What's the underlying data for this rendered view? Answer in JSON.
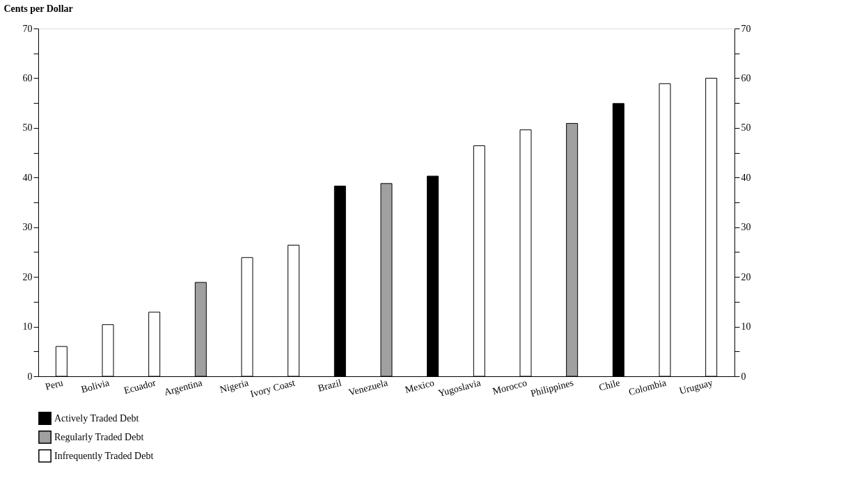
{
  "chart_data": {
    "type": "bar",
    "ylabel": "Cents per Dollar",
    "categories": [
      "Peru",
      "Bolivia",
      "Ecuador",
      "Argentina",
      "Nigeria",
      "Ivory Coast",
      "Brazil",
      "Venezuela",
      "Mexico",
      "Yugoslavia",
      "Morocco",
      "Philippines",
      "Chile",
      "Colombia",
      "Uruguay"
    ],
    "series": [
      {
        "name": "Actively Traded Debt",
        "color": "#000000",
        "values": [
          null,
          null,
          null,
          null,
          null,
          null,
          38.3,
          null,
          40.3,
          null,
          null,
          null,
          54.9,
          null,
          null
        ]
      },
      {
        "name": "Regularly Traded Debt",
        "color": "#a0a0a0",
        "values": [
          null,
          null,
          null,
          18.9,
          null,
          null,
          null,
          38.8,
          null,
          null,
          null,
          50.9,
          null,
          null,
          null
        ]
      },
      {
        "name": "Infrequently Traded Debt",
        "color": "#ffffff",
        "values": [
          6.0,
          10.4,
          12.9,
          null,
          23.9,
          26.4,
          null,
          null,
          null,
          46.4,
          49.6,
          null,
          null,
          58.9,
          60.0
        ]
      }
    ],
    "ylim": [
      0,
      70
    ],
    "yticks": [
      0,
      {
        "value": 5,
        "label": null
      },
      10,
      {
        "value": 15,
        "label": null
      },
      20,
      {
        "value": 25,
        "label": null
      },
      30,
      {
        "value": 35,
        "label": null
      },
      40,
      {
        "value": 45,
        "label": null
      },
      50,
      {
        "value": 55,
        "label": null
      },
      60,
      {
        "value": 65,
        "label": null
      },
      70
    ],
    "y2lim": [
      0,
      70
    ],
    "y2ticks": [
      0,
      {
        "value": 5,
        "label": null
      },
      10,
      {
        "value": 15,
        "label": null
      },
      20,
      {
        "value": 25,
        "label": null
      },
      30,
      {
        "value": 35,
        "label": null
      },
      40,
      {
        "value": 45,
        "label": null
      },
      50,
      {
        "value": 55,
        "label": null
      },
      60,
      {
        "value": 65,
        "label": null
      },
      70
    ],
    "grid": false,
    "legend": "bottom"
  }
}
